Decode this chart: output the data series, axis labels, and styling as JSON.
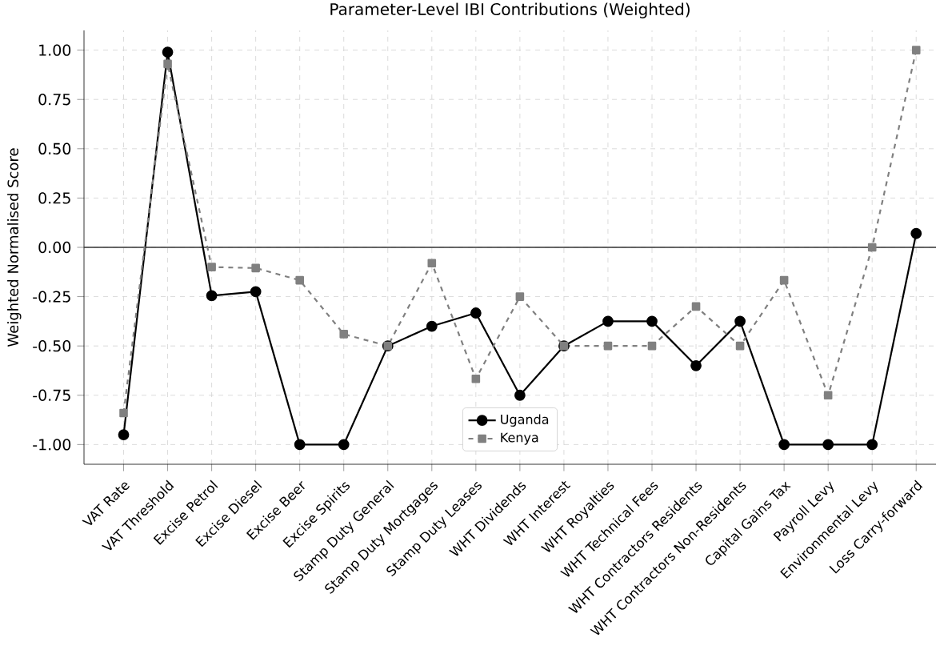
{
  "chart_data": {
    "type": "line",
    "title": "Parameter-Level IBI Contributions (Weighted)",
    "ylabel": "Weighted Normalised Score",
    "categories": [
      "VAT Rate",
      "VAT Threshold",
      "Excise Petrol",
      "Excise Diesel",
      "Excise Beer",
      "Excise Spirits",
      "Stamp Duty General",
      "Stamp Duty Mortgages",
      "Stamp Duty Leases",
      "WHT Dividends",
      "WHT Interest",
      "WHT Royalties",
      "WHT Technical Fees",
      "WHT Contractors Residents",
      "WHT Contractors Non-Residents",
      "Capital Gains Tax",
      "Payroll Levy",
      "Environmental Levy",
      "Loss Carry-forward"
    ],
    "series": [
      {
        "name": "Uganda",
        "color": "#000000",
        "marker": "circle",
        "line_style": "solid",
        "values": [
          -0.95,
          0.99,
          -0.245,
          -0.225,
          -1.0,
          -1.0,
          -0.5,
          -0.4,
          -0.333,
          -0.75,
          -0.5,
          -0.375,
          -0.375,
          -0.6,
          -0.375,
          -1.0,
          -1.0,
          -1.0,
          0.07
        ]
      },
      {
        "name": "Kenya",
        "color": "#808080",
        "marker": "square",
        "line_style": "dashed",
        "values": [
          -0.84,
          0.93,
          -0.1,
          -0.105,
          -0.167,
          -0.44,
          -0.5,
          -0.08,
          -0.667,
          -0.25,
          -0.5,
          -0.5,
          -0.5,
          -0.3,
          -0.5,
          -0.167,
          -0.75,
          0.0,
          1.0
        ]
      }
    ],
    "ylim": [
      -1.1,
      1.1
    ],
    "yticks": [
      {
        "value": -1,
        "label": "-1.00"
      },
      {
        "value": -0.75,
        "label": "-0.75"
      },
      {
        "value": -0.5,
        "label": "-0.50"
      },
      {
        "value": -0.25,
        "label": "-0.25"
      },
      {
        "value": 0,
        "label": "0.00"
      },
      {
        "value": 0.25,
        "label": "0.25"
      },
      {
        "value": 0.5,
        "label": "0.50"
      },
      {
        "value": 0.75,
        "label": "0.75"
      },
      {
        "value": 1,
        "label": "1.00"
      }
    ],
    "ref_lines": [
      {
        "axis": "y",
        "value": 0,
        "color": "#333333"
      }
    ],
    "grid": true,
    "legend": "bottom"
  }
}
